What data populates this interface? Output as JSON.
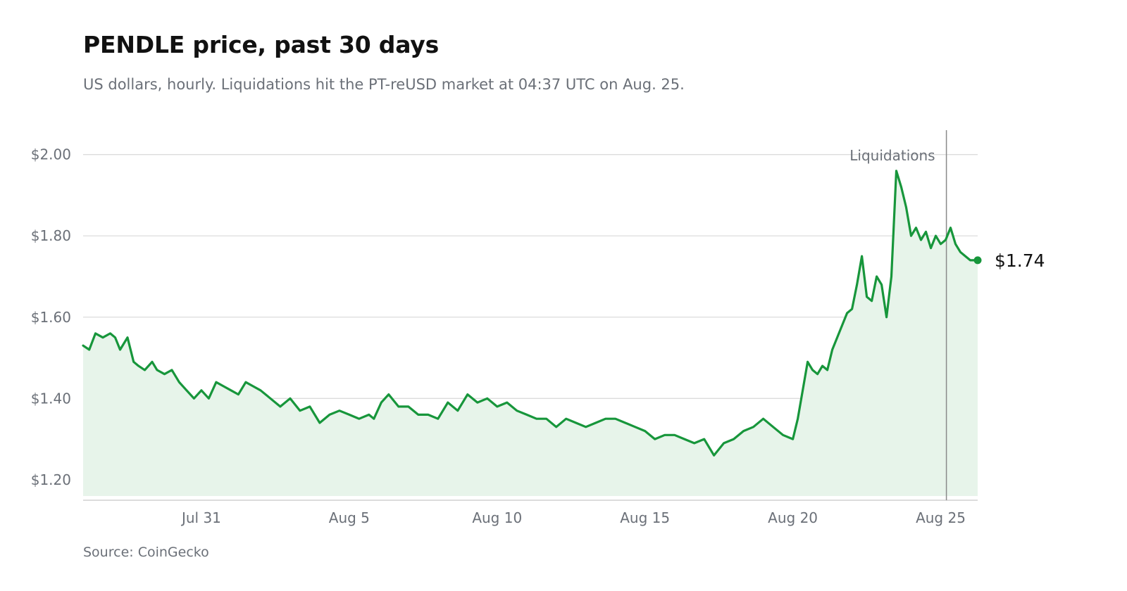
{
  "header": {
    "title": "PENDLE price, past 30 days",
    "subtitle": "US dollars, hourly. Liquidations hit the PT-reUSD market at 04:37 UTC on Aug. 25."
  },
  "footer": {
    "source": "Source: CoinGecko"
  },
  "colors": {
    "line": "#17963b",
    "fill": "#e7f4ea",
    "grid": "#dcdcdc",
    "annotation": "#8a8a8a",
    "text_muted": "#6b7078"
  },
  "chart_data": {
    "type": "area",
    "title": "PENDLE price, past 30 days",
    "subtitle": "US dollars, hourly. Liquidations hit the PT-reUSD market at 04:37 UTC on Aug. 25.",
    "xlabel": "",
    "ylabel": "",
    "ylim": [
      1.16,
      2.06
    ],
    "grid": true,
    "x_range": [
      "2025-07-27 00:00",
      "2025-08-26 06:00"
    ],
    "y_ticks": [
      {
        "value": 1.2,
        "label": "$1.20"
      },
      {
        "value": 1.4,
        "label": "$1.40"
      },
      {
        "value": 1.6,
        "label": "$1.60"
      },
      {
        "value": 1.8,
        "label": "$1.80"
      },
      {
        "value": 2.0,
        "label": "$2.00"
      }
    ],
    "x_ticks": [
      {
        "value": "2025-07-31",
        "label": "Jul 31"
      },
      {
        "value": "2025-08-05",
        "label": "Aug 5"
      },
      {
        "value": "2025-08-10",
        "label": "Aug 10"
      },
      {
        "value": "2025-08-15",
        "label": "Aug 15"
      },
      {
        "value": "2025-08-20",
        "label": "Aug 20"
      },
      {
        "value": "2025-08-25",
        "label": "Aug 25"
      }
    ],
    "annotation": {
      "x": "2025-08-25 04:37",
      "label": "Liquidations"
    },
    "end_label": "$1.74",
    "series": [
      {
        "x": [
          "2025-07-27 00:00",
          "2025-07-27 05:00",
          "2025-07-27 10:00",
          "2025-07-27 16:00",
          "2025-07-27 22:00",
          "2025-07-28 02:00",
          "2025-07-28 06:00",
          "2025-07-28 12:00",
          "2025-07-28 17:00",
          "2025-07-28 21:00",
          "2025-07-29 02:00",
          "2025-07-29 08:00",
          "2025-07-29 12:00",
          "2025-07-29 18:00",
          "2025-07-30 00:00",
          "2025-07-30 06:00",
          "2025-07-30 12:00",
          "2025-07-30 18:00",
          "2025-07-31 00:00",
          "2025-07-31 06:00",
          "2025-07-31 12:00",
          "2025-07-31 18:00",
          "2025-08-01 00:00",
          "2025-08-01 06:00",
          "2025-08-01 12:00",
          "2025-08-01 18:00",
          "2025-08-02 00:00",
          "2025-08-02 08:00",
          "2025-08-02 16:00",
          "2025-08-03 00:00",
          "2025-08-03 08:00",
          "2025-08-03 16:00",
          "2025-08-04 00:00",
          "2025-08-04 08:00",
          "2025-08-04 16:00",
          "2025-08-05 00:00",
          "2025-08-05 08:00",
          "2025-08-05 16:00",
          "2025-08-05 20:00",
          "2025-08-06 02:00",
          "2025-08-06 08:00",
          "2025-08-06 16:00",
          "2025-08-07 00:00",
          "2025-08-07 08:00",
          "2025-08-07 16:00",
          "2025-08-08 00:00",
          "2025-08-08 08:00",
          "2025-08-08 16:00",
          "2025-08-09 00:00",
          "2025-08-09 08:00",
          "2025-08-09 16:00",
          "2025-08-10 00:00",
          "2025-08-10 08:00",
          "2025-08-10 16:00",
          "2025-08-11 00:00",
          "2025-08-11 08:00",
          "2025-08-11 16:00",
          "2025-08-12 00:00",
          "2025-08-12 08:00",
          "2025-08-12 16:00",
          "2025-08-13 00:00",
          "2025-08-13 08:00",
          "2025-08-13 16:00",
          "2025-08-14 00:00",
          "2025-08-14 08:00",
          "2025-08-14 16:00",
          "2025-08-15 00:00",
          "2025-08-15 08:00",
          "2025-08-15 16:00",
          "2025-08-16 00:00",
          "2025-08-16 08:00",
          "2025-08-16 16:00",
          "2025-08-17 00:00",
          "2025-08-17 08:00",
          "2025-08-17 16:00",
          "2025-08-18 00:00",
          "2025-08-18 08:00",
          "2025-08-18 16:00",
          "2025-08-19 00:00",
          "2025-08-19 08:00",
          "2025-08-19 16:00",
          "2025-08-20 00:00",
          "2025-08-20 04:00",
          "2025-08-20 08:00",
          "2025-08-20 12:00",
          "2025-08-20 16:00",
          "2025-08-20 20:00",
          "2025-08-21 00:00",
          "2025-08-21 04:00",
          "2025-08-21 08:00",
          "2025-08-21 12:00",
          "2025-08-21 16:00",
          "2025-08-21 20:00",
          "2025-08-22 00:00",
          "2025-08-22 04:00",
          "2025-08-22 08:00",
          "2025-08-22 12:00",
          "2025-08-22 16:00",
          "2025-08-22 20:00",
          "2025-08-23 00:00",
          "2025-08-23 04:00",
          "2025-08-23 08:00",
          "2025-08-23 12:00",
          "2025-08-23 16:00",
          "2025-08-23 20:00",
          "2025-08-24 00:00",
          "2025-08-24 04:00",
          "2025-08-24 08:00",
          "2025-08-24 12:00",
          "2025-08-24 16:00",
          "2025-08-24 20:00",
          "2025-08-25 00:00",
          "2025-08-25 04:00",
          "2025-08-25 08:00",
          "2025-08-25 12:00",
          "2025-08-25 16:00",
          "2025-08-25 20:00",
          "2025-08-26 00:00",
          "2025-08-26 06:00"
        ],
        "values": [
          1.53,
          1.52,
          1.56,
          1.55,
          1.56,
          1.55,
          1.52,
          1.55,
          1.49,
          1.48,
          1.47,
          1.49,
          1.47,
          1.46,
          1.47,
          1.44,
          1.42,
          1.4,
          1.42,
          1.4,
          1.44,
          1.43,
          1.42,
          1.41,
          1.44,
          1.43,
          1.42,
          1.4,
          1.38,
          1.4,
          1.37,
          1.38,
          1.34,
          1.36,
          1.37,
          1.36,
          1.35,
          1.36,
          1.35,
          1.39,
          1.41,
          1.38,
          1.38,
          1.36,
          1.36,
          1.35,
          1.39,
          1.37,
          1.41,
          1.39,
          1.4,
          1.38,
          1.39,
          1.37,
          1.36,
          1.35,
          1.35,
          1.33,
          1.35,
          1.34,
          1.33,
          1.34,
          1.35,
          1.35,
          1.34,
          1.33,
          1.32,
          1.3,
          1.31,
          1.31,
          1.3,
          1.29,
          1.3,
          1.26,
          1.29,
          1.3,
          1.32,
          1.33,
          1.35,
          1.33,
          1.31,
          1.3,
          1.35,
          1.42,
          1.49,
          1.47,
          1.46,
          1.48,
          1.47,
          1.52,
          1.55,
          1.58,
          1.61,
          1.62,
          1.68,
          1.75,
          1.65,
          1.64,
          1.7,
          1.68,
          1.6,
          1.7,
          1.96,
          1.92,
          1.87,
          1.8,
          1.82,
          1.79,
          1.81,
          1.77,
          1.8,
          1.78,
          1.79,
          1.82,
          1.78,
          1.76,
          1.75,
          1.74,
          1.74
        ]
      }
    ]
  }
}
